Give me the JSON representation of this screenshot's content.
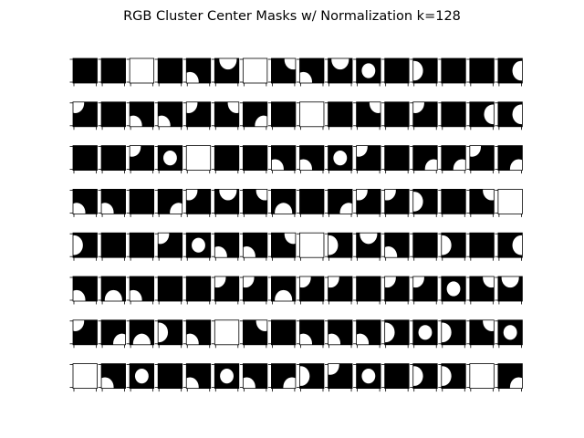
{
  "chart_data": {
    "type": "image-grid",
    "title": "RGB Cluster Center Masks w/ Normalization k=128",
    "rows": 8,
    "cols": 16,
    "cell_colors": {
      "background": "#000000",
      "foreground": "#ffffff"
    },
    "axes": {
      "ticks": "left and bottom only",
      "tick_labels": "none",
      "grid": false
    },
    "masks": [
      [
        "black",
        "black",
        "white",
        "black",
        "blob-bottom-left",
        "blob-top-center",
        "white",
        "blob-top-right",
        "blob-bottom-left",
        "blob-top",
        "blob-center",
        "black",
        "blob-left",
        "black",
        "black",
        "blob-right"
      ],
      [
        "blob-top-left",
        "black",
        "blob-bottom-left",
        "blob-bottom-left",
        "blob-top-left",
        "blob-top-right",
        "blob-bottom-right",
        "black",
        "white",
        "black",
        "blob-top-right",
        "black",
        "blob-top-left",
        "black",
        "blob-right",
        "blob-right"
      ],
      [
        "black",
        "black",
        "blob-top-left",
        "blob-center",
        "white",
        "black",
        "black",
        "blob-bottom-left",
        "blob-bottom-left",
        "blob-center",
        "blob-top-left",
        "black",
        "blob-bottom-right",
        "blob-bottom-right",
        "blob-top-left",
        "blob-bottom-right"
      ],
      [
        "blob-bottom-left",
        "blob-bottom-left",
        "black",
        "blob-bottom-right",
        "blob-top-left",
        "blob-top-center",
        "blob-top-right",
        "blob-bottom-center",
        "black",
        "blob-bottom-right",
        "blob-top-left",
        "blob-top-left",
        "blob-left",
        "black",
        "blob-top-right",
        "white"
      ],
      [
        "blob-left",
        "black",
        "black",
        "blob-top-left",
        "blob-center",
        "blob-bottom-left",
        "blob-bottom-left",
        "blob-top-right",
        "white",
        "blob-left",
        "blob-top",
        "blob-bottom-left",
        "black",
        "blob-left",
        "black",
        "blob-right"
      ],
      [
        "blob-bottom-left",
        "blob-bottom",
        "blob-bottom-left",
        "black",
        "black",
        "blob-top-left",
        "blob-top-left",
        "blob-bottom",
        "blob-top-left",
        "blob-top-left",
        "black",
        "blob-top-left",
        "blob-top-left",
        "blob-center",
        "blob-top-right",
        "blob-top"
      ],
      [
        "blob-top-left",
        "blob-bottom-right",
        "blob-bottom",
        "blob-left",
        "blob-bottom-left",
        "white",
        "blob-top-right",
        "black",
        "blob-bottom-left",
        "blob-bottom-left",
        "blob-bottom-left",
        "blob-left",
        "blob-center",
        "blob-left",
        "blob-top-right",
        "blob-center"
      ],
      [
        "white",
        "blob-bottom-left",
        "blob-center",
        "black",
        "blob-bottom-left",
        "blob-center",
        "blob-bottom-left",
        "blob-bottom-right",
        "blob-left",
        "blob-top-left",
        "blob-center",
        "black",
        "blob-left",
        "blob-left",
        "white",
        "blob-bottom-right"
      ]
    ]
  }
}
